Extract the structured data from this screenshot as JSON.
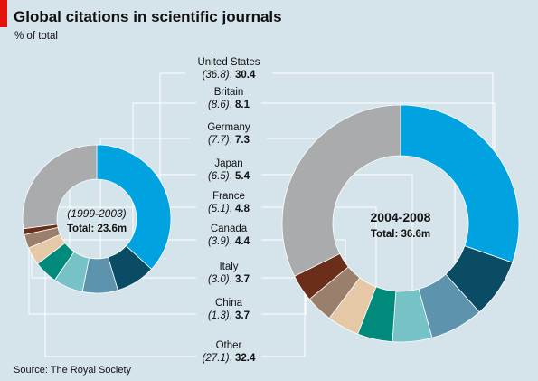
{
  "title": "Global citations in scientific journals",
  "subtitle": "% of total",
  "source": "Source: The Royal Society",
  "colors": {
    "background": "#d5e3ea",
    "accent_red": "#e3120b",
    "United States": "#00a3e0",
    "Britain": "#0a4c63",
    "Germany": "#5d93ad",
    "Japan": "#76c2c6",
    "France": "#008a7c",
    "Canada": "#e5c8a6",
    "Italy": "#9b7f6d",
    "China": "#6b2e1b",
    "Other": "#a9abac"
  },
  "chart_data": {
    "type": "pie",
    "title": "Global citations in scientific journals",
    "subtitle": "% of total",
    "categories": [
      "United States",
      "Britain",
      "Germany",
      "Japan",
      "France",
      "Canada",
      "Italy",
      "China",
      "Other"
    ],
    "series": [
      {
        "name": "(1999-2003)",
        "total_label": "Total: 23.6m",
        "values": [
          36.8,
          8.6,
          7.7,
          6.5,
          5.1,
          3.9,
          3.0,
          1.3,
          27.1
        ]
      },
      {
        "name": "2004-2008",
        "total_label": "Total: 36.6m",
        "values": [
          30.4,
          8.1,
          7.3,
          5.4,
          4.8,
          4.4,
          3.7,
          3.7,
          32.4
        ]
      }
    ],
    "label_text": [
      {
        "country": "United States",
        "old": "(36.8)",
        "sep": ", ",
        "new": "30.4"
      },
      {
        "country": "Britain",
        "old": "(8.6)",
        "sep": ", ",
        "new": "8.1"
      },
      {
        "country": "Germany",
        "old": "(7.7)",
        "sep": ", ",
        "new": "7.3"
      },
      {
        "country": "Japan",
        "old": "(6.5)",
        "sep": ", ",
        "new": "5.4"
      },
      {
        "country": "France",
        "old": "(5.1)",
        "sep": ", ",
        "new": "4.8"
      },
      {
        "country": "Canada",
        "old": "(3.9)",
        "sep": ", ",
        "new": "4.4"
      },
      {
        "country": "Italy",
        "old": "(3.0)",
        "sep": ", ",
        "new": "3.7"
      },
      {
        "country": "China",
        "old": "(1.3)",
        "sep": ", ",
        "new": "3.7"
      },
      {
        "country": "Other",
        "old": "(27.1)",
        "sep": ", ",
        "new": "32.4"
      }
    ]
  }
}
